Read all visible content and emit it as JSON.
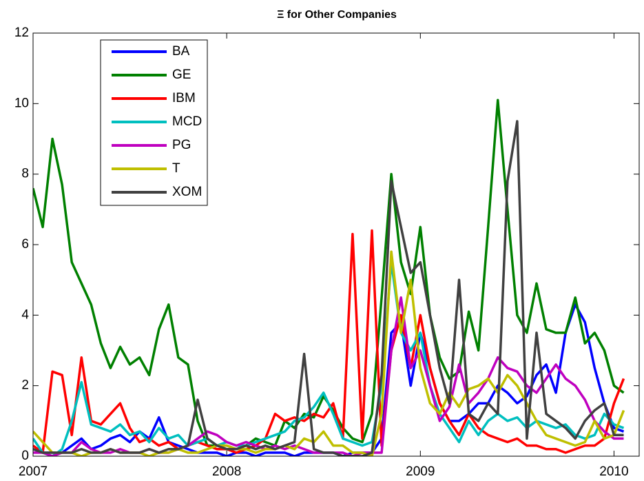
{
  "chart_data": {
    "type": "line",
    "title": "Ξ for Other Companies",
    "x": [
      2007,
      2007.05,
      2007.1,
      2007.15,
      2007.2,
      2007.25,
      2007.3,
      2007.35,
      2007.4,
      2007.45,
      2007.5,
      2007.55,
      2007.6,
      2007.65,
      2007.7,
      2007.75,
      2007.8,
      2007.85,
      2007.9,
      2007.95,
      2008,
      2008.05,
      2008.1,
      2008.15,
      2008.2,
      2008.25,
      2008.3,
      2008.35,
      2008.4,
      2008.45,
      2008.5,
      2008.55,
      2008.6,
      2008.65,
      2008.7,
      2008.75,
      2008.8,
      2008.85,
      2008.9,
      2008.95,
      2009,
      2009.05,
      2009.1,
      2009.15,
      2009.2,
      2009.25,
      2009.3,
      2009.35,
      2009.4,
      2009.45,
      2009.5,
      2009.55,
      2009.6,
      2009.65,
      2009.7,
      2009.75,
      2009.8,
      2009.85,
      2009.9,
      2009.95,
      2010,
      2010.05
    ],
    "series": [
      {
        "name": "BA",
        "color": "#0000ff",
        "values": [
          0.2,
          0.1,
          0.1,
          0.1,
          0.3,
          0.5,
          0.2,
          0.3,
          0.5,
          0.6,
          0.4,
          0.7,
          0.5,
          1.1,
          0.4,
          0.3,
          0.2,
          0.1,
          0.1,
          0.1,
          0.0,
          0.1,
          0.1,
          0.0,
          0.1,
          0.1,
          0.1,
          0.0,
          0.1,
          0.1,
          0.1,
          0.1,
          0.0,
          0.1,
          0.1,
          0.1,
          0.5,
          3.5,
          3.8,
          2.0,
          3.5,
          2.5,
          1.5,
          1.0,
          1.0,
          1.2,
          1.5,
          1.5,
          2.0,
          1.8,
          1.5,
          1.7,
          2.3,
          2.6,
          1.8,
          3.5,
          4.3,
          3.8,
          2.5,
          1.5,
          0.8,
          0.7
        ]
      },
      {
        "name": "GE",
        "color": "#008000",
        "values": [
          7.6,
          6.5,
          9.0,
          7.7,
          5.5,
          4.9,
          4.3,
          3.2,
          2.5,
          3.1,
          2.6,
          2.8,
          2.3,
          3.6,
          4.3,
          2.8,
          2.6,
          1.0,
          0.3,
          0.3,
          0.3,
          0.2,
          0.3,
          0.5,
          0.4,
          0.3,
          1.0,
          0.8,
          1.2,
          1.1,
          1.7,
          1.3,
          0.8,
          0.5,
          0.4,
          1.2,
          4.5,
          8.0,
          5.5,
          4.6,
          6.5,
          4.0,
          2.8,
          2.2,
          2.4,
          4.1,
          3.0,
          6.5,
          10.1,
          7.0,
          4.0,
          3.5,
          4.9,
          3.6,
          3.5,
          3.5,
          4.5,
          3.2,
          3.5,
          3.0,
          2.0,
          1.8
        ]
      },
      {
        "name": "IBM",
        "color": "#ff0000",
        "values": [
          0.3,
          0.1,
          2.4,
          2.3,
          0.6,
          2.8,
          1.0,
          0.9,
          1.2,
          1.5,
          0.8,
          0.4,
          0.5,
          0.3,
          0.4,
          0.2,
          0.3,
          0.4,
          0.3,
          0.2,
          0.2,
          0.1,
          0.2,
          0.3,
          0.5,
          1.2,
          1.0,
          1.1,
          1.0,
          1.2,
          1.1,
          1.5,
          0.5,
          6.3,
          0.5,
          6.4,
          0.3,
          3.0,
          4.0,
          2.5,
          4.0,
          2.5,
          1.5,
          1.0,
          0.6,
          1.2,
          0.8,
          0.6,
          0.5,
          0.4,
          0.5,
          0.3,
          0.3,
          0.2,
          0.2,
          0.1,
          0.2,
          0.3,
          0.3,
          0.5,
          1.5,
          2.2
        ]
      },
      {
        "name": "MCD",
        "color": "#00bfbf",
        "values": [
          0.5,
          0.1,
          0.0,
          0.2,
          1.0,
          2.1,
          0.9,
          0.8,
          0.7,
          0.9,
          0.6,
          0.7,
          0.4,
          0.8,
          0.5,
          0.6,
          0.3,
          0.4,
          0.5,
          0.3,
          0.4,
          0.3,
          0.3,
          0.4,
          0.5,
          0.6,
          0.7,
          1.0,
          1.1,
          1.4,
          1.8,
          1.2,
          0.5,
          0.4,
          0.3,
          0.4,
          2.0,
          5.5,
          3.5,
          3.0,
          3.5,
          2.0,
          1.2,
          0.8,
          0.4,
          1.0,
          0.6,
          1.0,
          1.2,
          1.0,
          1.1,
          0.8,
          1.0,
          0.9,
          0.8,
          0.9,
          0.6,
          0.5,
          0.6,
          1.2,
          0.9,
          0.8
        ]
      },
      {
        "name": "PG",
        "color": "#bf00bf",
        "values": [
          0.1,
          0.1,
          0.0,
          0.1,
          0.1,
          0.4,
          0.2,
          0.1,
          0.1,
          0.2,
          0.1,
          0.1,
          0.2,
          0.1,
          0.1,
          0.2,
          0.3,
          0.5,
          0.7,
          0.6,
          0.4,
          0.3,
          0.4,
          0.3,
          0.2,
          0.3,
          0.2,
          0.3,
          0.2,
          0.1,
          0.1,
          0.1,
          0.1,
          0.0,
          0.1,
          0.1,
          0.1,
          3.0,
          4.5,
          2.5,
          3.0,
          2.0,
          1.0,
          1.4,
          2.6,
          1.5,
          1.8,
          2.2,
          2.8,
          2.5,
          2.4,
          2.0,
          1.8,
          2.2,
          2.6,
          2.2,
          2.0,
          1.6,
          1.0,
          0.7,
          0.5,
          0.5
        ]
      },
      {
        "name": "T",
        "color": "#bfbf00",
        "values": [
          0.7,
          0.4,
          0.1,
          0.1,
          0.1,
          0.0,
          0.1,
          0.1,
          0.2,
          0.1,
          0.1,
          0.1,
          0.0,
          0.1,
          0.1,
          0.2,
          0.1,
          0.1,
          0.2,
          0.3,
          0.3,
          0.2,
          0.2,
          0.1,
          0.2,
          0.2,
          0.3,
          0.2,
          0.5,
          0.4,
          0.7,
          0.3,
          0.3,
          0.1,
          0.1,
          0.0,
          1.2,
          5.8,
          3.5,
          5.0,
          2.5,
          1.5,
          1.2,
          1.8,
          1.4,
          1.9,
          2.0,
          2.2,
          1.8,
          2.3,
          2.0,
          1.5,
          1.0,
          0.6,
          0.5,
          0.4,
          0.3,
          0.4,
          1.0,
          0.5,
          0.6,
          1.3
        ]
      },
      {
        "name": "XOM",
        "color": "#404040",
        "values": [
          0.2,
          0.1,
          0.1,
          0.1,
          0.1,
          0.2,
          0.1,
          0.1,
          0.2,
          0.1,
          0.1,
          0.1,
          0.2,
          0.1,
          0.2,
          0.2,
          0.3,
          1.6,
          0.5,
          0.3,
          0.2,
          0.2,
          0.3,
          0.2,
          0.3,
          0.2,
          0.3,
          0.4,
          2.9,
          0.2,
          0.1,
          0.1,
          0.0,
          0.0,
          0.0,
          0.1,
          2.3,
          7.8,
          6.5,
          5.2,
          5.5,
          4.0,
          2.5,
          1.5,
          5.0,
          1.2,
          1.0,
          1.5,
          1.2,
          7.8,
          9.5,
          0.5,
          3.5,
          1.2,
          1.0,
          0.8,
          0.5,
          1.0,
          1.3,
          1.5,
          0.6,
          0.6
        ]
      }
    ],
    "xlim": [
      2007,
      2010.13
    ],
    "xticks": [
      2007,
      2008,
      2009,
      2010
    ],
    "ylim": [
      0,
      12
    ],
    "yticks": [
      0,
      2,
      4,
      6,
      8,
      10,
      12
    ],
    "grid": false,
    "legend": "upper left"
  }
}
